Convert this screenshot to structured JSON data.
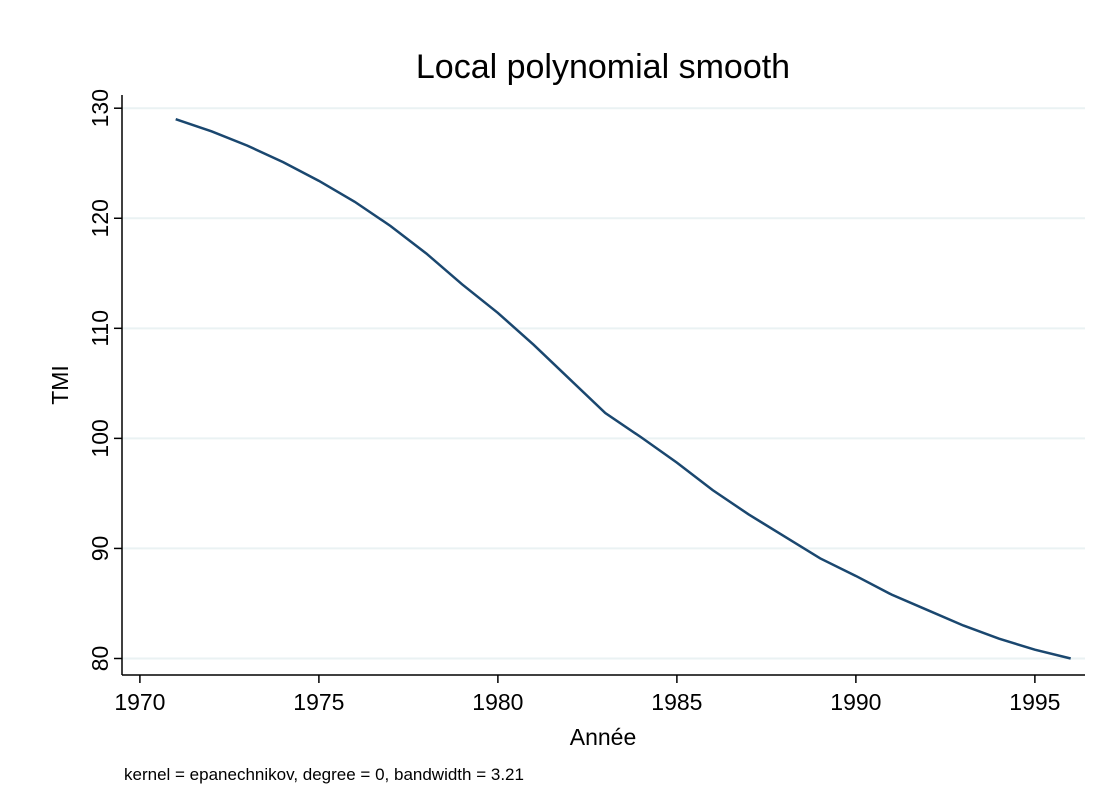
{
  "chart_data": {
    "type": "line",
    "title": "Local polynomial smooth",
    "x_label": "Année",
    "y_label": "TMI",
    "note": "kernel = epanechnikov, degree = 0, bandwidth = 3.21",
    "x": [
      1971,
      1972,
      1973,
      1974,
      1975,
      1976,
      1977,
      1978,
      1979,
      1980,
      1981,
      1982,
      1983,
      1984,
      1985,
      1986,
      1987,
      1988,
      1989,
      1990,
      1991,
      1992,
      1993,
      1994,
      1995,
      1996
    ],
    "series": [
      {
        "name": "TMI",
        "color": "#1a476f",
        "values": [
          129,
          127.9,
          126.6,
          125.1,
          123.4,
          121.5,
          119.3,
          116.8,
          114,
          111.4,
          108.5,
          105.4,
          102.3,
          100.1,
          97.8,
          95.3,
          93.1,
          91.1,
          89.1,
          87.5,
          85.8,
          84.4,
          83,
          81.8,
          80.8,
          80
        ]
      }
    ],
    "xlim": [
      1969.5,
      1996.4
    ],
    "ylim": [
      78.5,
      131.2
    ],
    "xticks": [
      1970,
      1975,
      1980,
      1985,
      1990,
      1995
    ],
    "yticks": [
      80,
      90,
      100,
      110,
      120,
      130
    ],
    "grid": true
  }
}
